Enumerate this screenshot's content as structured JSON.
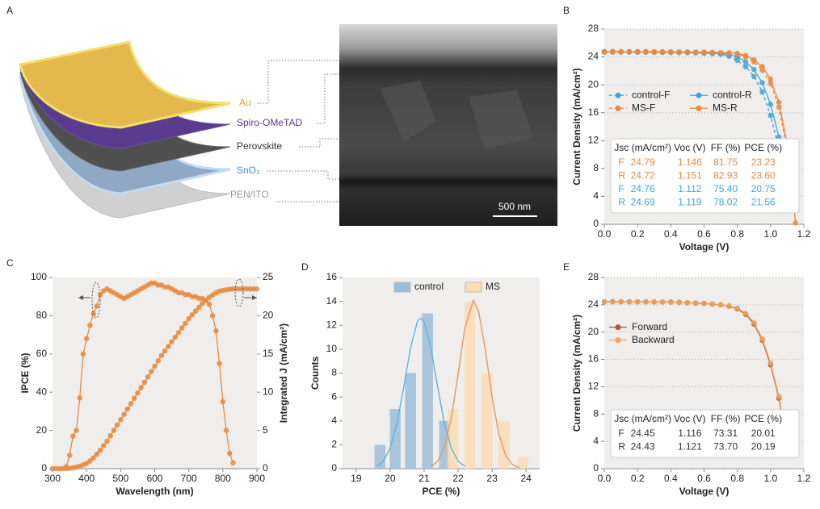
{
  "diagram": {
    "label": "A",
    "layers": [
      "Au",
      "Spiro-OMeTAD",
      "Perovskite",
      "SnO₂",
      "PEN/ITO"
    ],
    "scale_bar": "500 nm"
  },
  "chart_data": [
    {
      "type": "line",
      "label": "B",
      "xlabel": "Voltage (V)",
      "ylabel": "Current Density (mA/cm²)",
      "xlim": [
        0,
        1.2
      ],
      "xticks": [
        {
          "value": 0,
          "label": "0.0"
        },
        {
          "value": 0.2,
          "label": "0.2"
        },
        {
          "value": 0.4,
          "label": "0.4"
        },
        {
          "value": 0.6,
          "label": "0.6"
        },
        {
          "value": 0.8,
          "label": "0.8"
        },
        {
          "value": 1.0,
          "label": "1.0"
        },
        {
          "value": 1.2,
          "label": "1.2"
        }
      ],
      "ylim": [
        0,
        28
      ],
      "yticks": [
        0,
        4,
        8,
        12,
        16,
        20,
        24,
        28
      ],
      "grid": true,
      "legend": "center left",
      "x": [
        0,
        0.05,
        0.1,
        0.15,
        0.2,
        0.25,
        0.3,
        0.35,
        0.4,
        0.45,
        0.5,
        0.55,
        0.6,
        0.65,
        0.7,
        0.75,
        0.8,
        0.85,
        0.9,
        0.95,
        1.0,
        1.05,
        1.1,
        1.15
      ],
      "series": [
        {
          "name": "control-F",
          "color": "#3da5d9",
          "dashed": true,
          "values": [
            24.76,
            24.75,
            24.74,
            24.73,
            24.72,
            24.71,
            24.7,
            24.69,
            24.68,
            24.66,
            24.64,
            24.6,
            24.55,
            24.5,
            24.4,
            24.1,
            23.5,
            22.6,
            21.2,
            19.0,
            15.6,
            10.8,
            3.0,
            null
          ]
        },
        {
          "name": "control-R",
          "color": "#3da5d9",
          "dashed": false,
          "values": [
            24.69,
            24.69,
            24.68,
            24.68,
            24.67,
            24.67,
            24.66,
            24.65,
            24.64,
            24.63,
            24.61,
            24.59,
            24.56,
            24.52,
            24.47,
            24.4,
            24.0,
            23.3,
            22.2,
            20.3,
            17.2,
            12.5,
            4.5,
            null
          ]
        },
        {
          "name": "MS-F",
          "color": "#e8893e",
          "dashed": true,
          "values": [
            24.79,
            24.79,
            24.78,
            24.78,
            24.77,
            24.77,
            24.76,
            24.75,
            24.74,
            24.73,
            24.72,
            24.7,
            24.68,
            24.65,
            24.6,
            24.55,
            24.4,
            24.0,
            23.3,
            22.1,
            20.2,
            16.8,
            10.5,
            null
          ]
        },
        {
          "name": "MS-R",
          "color": "#e8893e",
          "dashed": false,
          "values": [
            24.72,
            24.72,
            24.72,
            24.71,
            24.71,
            24.71,
            24.7,
            24.7,
            24.69,
            24.69,
            24.68,
            24.67,
            24.66,
            24.64,
            24.62,
            24.58,
            24.5,
            24.2,
            23.6,
            22.6,
            20.8,
            17.5,
            11.5,
            0.2
          ]
        }
      ],
      "table": {
        "columns": [
          "Jsc (mA/cm²)",
          "Voc (V)",
          "FF (%)",
          "PCE (%)"
        ],
        "rows": [
          {
            "color": "#e8893e",
            "cells": [
              "F",
              "24.79",
              "1.146",
              "81.75",
              "23.23"
            ]
          },
          {
            "color": "#e8893e",
            "cells": [
              "R",
              "24.72",
              "1.151",
              "82.93",
              "23.60"
            ]
          },
          {
            "color": "#3da5d9",
            "cells": [
              "F",
              "24.76",
              "1.112",
              "75.40",
              "20.75"
            ]
          },
          {
            "color": "#3da5d9",
            "cells": [
              "R",
              "24.69",
              "1.119",
              "78.02",
              "21.56"
            ]
          }
        ]
      }
    },
    {
      "type": "line",
      "label": "C",
      "xlabel": "Wavelength (nm)",
      "ylabel": "IPCE (%)",
      "y2label": "Integrated J (mA/cm²)",
      "xlim": [
        300,
        900
      ],
      "xticks": [
        300,
        400,
        500,
        600,
        700,
        800,
        900
      ],
      "ylim": [
        0,
        100
      ],
      "yticks": [
        0,
        20,
        40,
        60,
        80,
        100
      ],
      "y2lim": [
        0,
        25
      ],
      "y2ticks": [
        0,
        5,
        10,
        15,
        20,
        25
      ],
      "grid": false,
      "x": [
        300,
        310,
        320,
        330,
        340,
        350,
        360,
        370,
        380,
        390,
        400,
        410,
        420,
        430,
        440,
        450,
        460,
        470,
        480,
        490,
        500,
        510,
        520,
        530,
        540,
        550,
        560,
        570,
        580,
        590,
        600,
        610,
        620,
        630,
        640,
        650,
        660,
        670,
        680,
        690,
        700,
        710,
        720,
        730,
        740,
        750,
        760,
        770,
        780,
        790,
        800,
        810,
        820,
        830,
        840,
        850,
        860,
        870,
        880,
        890,
        900
      ],
      "series": [
        {
          "name": "IPCE",
          "color": "#e8893e",
          "values": [
            null,
            null,
            null,
            null,
            1,
            7,
            17,
            20,
            37,
            60,
            68,
            75,
            81,
            85,
            91,
            93,
            94,
            93,
            92,
            91,
            90,
            89,
            90,
            91,
            92,
            93,
            94,
            95,
            96,
            97,
            97,
            96,
            96,
            95,
            95,
            94,
            93,
            92,
            92,
            91,
            91,
            90,
            90,
            89,
            89,
            88,
            86,
            80,
            72,
            55,
            35,
            20,
            8,
            3,
            null,
            null,
            null,
            null,
            null,
            null,
            null
          ]
        },
        {
          "name": "Integrated J",
          "color": "#e8893e",
          "axis": "y2",
          "values": [
            0,
            0,
            0,
            0,
            0.02,
            0.05,
            0.1,
            0.2,
            0.3,
            0.5,
            0.7,
            1.0,
            1.4,
            1.9,
            2.4,
            3.0,
            3.6,
            4.3,
            5.0,
            5.7,
            6.4,
            7.1,
            7.8,
            8.5,
            9.2,
            9.9,
            10.6,
            11.3,
            12.0,
            12.7,
            13.4,
            14.1,
            14.8,
            15.4,
            16.0,
            16.6,
            17.2,
            17.8,
            18.4,
            19.0,
            19.6,
            20.1,
            20.6,
            21.1,
            21.6,
            22.0,
            22.4,
            22.7,
            23.0,
            23.2,
            23.3,
            23.4,
            23.45,
            23.5,
            23.5,
            23.5,
            23.5,
            23.5,
            23.5,
            23.5,
            23.5
          ]
        }
      ]
    },
    {
      "type": "bar",
      "label": "D",
      "xlabel": "PCE (%)",
      "ylabel": "Counts",
      "xlim": [
        18.6,
        24.4
      ],
      "xticks": [
        19,
        20,
        21,
        22,
        23,
        24
      ],
      "ylim": [
        0,
        16
      ],
      "yticks": [
        0,
        2,
        4,
        6,
        8,
        10,
        12,
        14,
        16
      ],
      "grid": false,
      "legend": "upper right",
      "series": [
        {
          "name": "control",
          "color": "#9dbcd8",
          "x": [
            19.7,
            20.15,
            20.6,
            21.1,
            21.6
          ],
          "values": [
            2,
            5,
            8,
            13,
            4
          ],
          "fit": {
            "color": "#5ab7dd",
            "x": [
              19.6,
              19.8,
              20.0,
              20.2,
              20.4,
              20.6,
              20.8,
              20.9,
              21.0,
              21.2,
              21.4,
              21.6,
              21.8,
              22.0,
              22.2
            ],
            "values": [
              0.19,
              0.63,
              1.71,
              3.76,
              6.8,
              10.1,
              12.3,
              12.6,
              12.3,
              10.1,
              6.8,
              3.76,
              1.71,
              0.63,
              0.19
            ]
          }
        },
        {
          "name": "MS",
          "color": "#fbdcb5",
          "x": [
            21.85,
            22.35,
            22.85,
            23.35,
            23.9
          ],
          "values": [
            5,
            14,
            8,
            4,
            1
          ],
          "fit": {
            "color": "#e39a62",
            "x": [
              21.2,
              21.4,
              21.6,
              21.8,
              22.0,
              22.2,
              22.45,
              22.6,
              22.8,
              23.0,
              23.2,
              23.4,
              23.6,
              23.8
            ],
            "values": [
              0.17,
              0.62,
              1.81,
              4.25,
              7.9,
              11.8,
              14.1,
              13.2,
              9.97,
              6.0,
              2.87,
              1.09,
              0.33,
              0.08
            ]
          }
        }
      ]
    },
    {
      "type": "line",
      "label": "E",
      "xlabel": "Voltage (V)",
      "ylabel": "Current Density (mA/cm²)",
      "xlim": [
        0,
        1.2
      ],
      "xticks": [
        {
          "value": 0,
          "label": "0.0"
        },
        {
          "value": 0.2,
          "label": "0.2"
        },
        {
          "value": 0.4,
          "label": "0.4"
        },
        {
          "value": 0.6,
          "label": "0.6"
        },
        {
          "value": 0.8,
          "label": "0.8"
        },
        {
          "value": 1.0,
          "label": "1.0"
        },
        {
          "value": 1.2,
          "label": "1.2"
        }
      ],
      "ylim": [
        0,
        28
      ],
      "yticks": [
        0,
        4,
        8,
        12,
        16,
        20,
        24,
        28
      ],
      "grid": true,
      "legend": "center left",
      "x": [
        0,
        0.05,
        0.1,
        0.15,
        0.2,
        0.25,
        0.3,
        0.35,
        0.4,
        0.45,
        0.5,
        0.55,
        0.6,
        0.65,
        0.7,
        0.75,
        0.8,
        0.85,
        0.9,
        0.95,
        1.0,
        1.05,
        1.1
      ],
      "series": [
        {
          "name": "Forward",
          "color": "#b5582e",
          "values": [
            24.45,
            24.45,
            24.44,
            24.44,
            24.43,
            24.43,
            24.42,
            24.41,
            24.4,
            24.35,
            24.3,
            24.25,
            24.2,
            24.1,
            24.0,
            23.8,
            23.4,
            22.6,
            21.2,
            18.8,
            15.2,
            10.3,
            3.6
          ]
        },
        {
          "name": "Backward",
          "color": "#f0a25c",
          "values": [
            24.43,
            24.43,
            24.43,
            24.42,
            24.42,
            24.41,
            24.41,
            24.4,
            24.39,
            24.36,
            24.32,
            24.27,
            24.22,
            24.13,
            24.03,
            23.85,
            23.5,
            22.75,
            21.4,
            19.0,
            15.5,
            10.6,
            4.0
          ]
        }
      ],
      "table": {
        "columns": [
          "Jsc (mA/cm²)",
          "Voc (V)",
          "FF (%)",
          "PCE (%)"
        ],
        "rows": [
          {
            "color": "#333333",
            "cells": [
              "F",
              "24.45",
              "1.116",
              "73.31",
              "20.01"
            ]
          },
          {
            "color": "#333333",
            "cells": [
              "R",
              "24.43",
              "1.121",
              "73.70",
              "20.19"
            ]
          }
        ]
      }
    }
  ]
}
